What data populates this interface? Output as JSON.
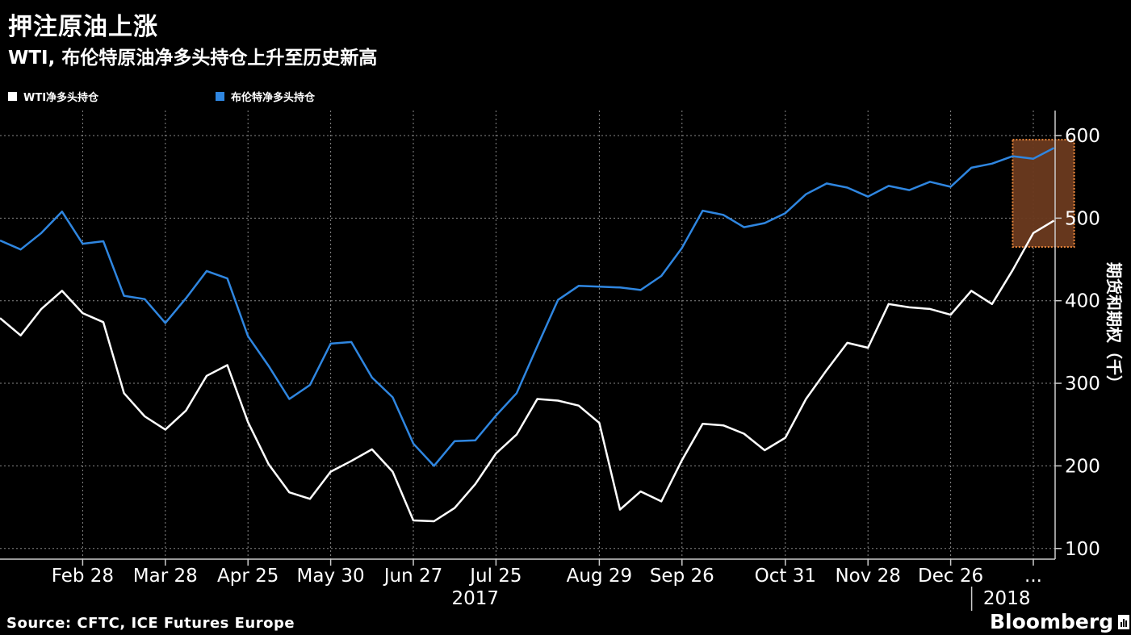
{
  "title": "押注原油上涨",
  "subtitle": "WTI, 布伦特原油净多头持仓上升至历史新高",
  "source": "Source: CFTC, ICE Futures Europe",
  "brand": "Bloomberg",
  "colors": {
    "background": "#000000",
    "wti": "#ffffff",
    "brent": "#2f86e0",
    "highlight": "#6b3a1f",
    "highlight_border": "#f08a3c",
    "grid": "#888888"
  },
  "chart_data": {
    "type": "line",
    "title": "押注原油上涨",
    "subtitle": "WTI, 布伦特原油净多头持仓上升至历史新高",
    "ylabel": "期货和期权（千）",
    "ylim": [
      90,
      625
    ],
    "yticks": [
      100,
      200,
      300,
      400,
      500,
      600
    ],
    "grid": true,
    "legend_position": "top-left",
    "x_tick_labels": [
      "Feb 28",
      "Mar 28",
      "Apr 25",
      "May 30",
      "Jun 27",
      "Jul 25",
      "Aug 29",
      "Sep 26",
      "Oct 31",
      "Nov 28",
      "Dec 26",
      "..."
    ],
    "x_tick_index": [
      4,
      8,
      12,
      16,
      20,
      24,
      29,
      33,
      38,
      42,
      46,
      50
    ],
    "x_year_labels": [
      {
        "label": "2017",
        "index": 23
      },
      {
        "label": "2018",
        "index": 49.5
      }
    ],
    "series": [
      {
        "name": "WTI净多头持仓",
        "values": [
          379,
          358,
          390,
          412,
          385,
          374,
          288,
          260,
          244,
          267,
          309,
          322,
          253,
          202,
          168,
          160,
          193,
          206,
          220,
          193,
          134,
          133,
          149,
          178,
          215,
          238,
          281,
          279,
          273,
          252,
          147,
          169,
          157,
          207,
          251,
          249,
          239,
          219,
          234,
          281,
          316,
          349,
          343,
          396,
          392,
          390,
          383,
          412,
          396,
          437,
          482,
          497
        ]
      },
      {
        "name": "布伦特净多头持仓",
        "values": [
          473,
          462,
          482,
          508,
          469,
          472,
          406,
          402,
          373,
          403,
          436,
          427,
          357,
          321,
          281,
          298,
          348,
          350,
          307,
          283,
          227,
          200,
          230,
          231,
          261,
          288,
          345,
          401,
          418,
          417,
          416,
          413,
          430,
          464,
          509,
          504,
          489,
          494,
          506,
          529,
          542,
          537,
          526,
          539,
          534,
          544,
          538,
          561,
          566,
          575,
          572,
          585
        ]
      }
    ],
    "highlight": {
      "from_index": 49,
      "to_index": 51,
      "from_value": 465,
      "to_value": 595
    }
  }
}
